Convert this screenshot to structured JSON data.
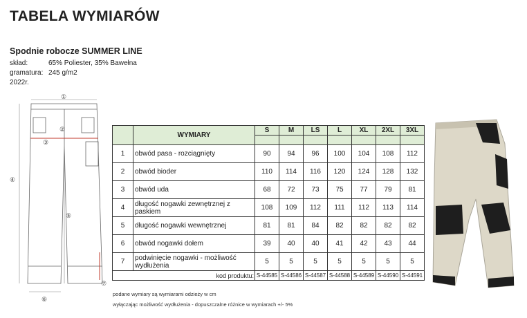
{
  "title": "TABELA WYMIARÓW",
  "product": "Spodnie robocze SUMMER LINE",
  "specs": [
    {
      "label": "skład:",
      "value": "65% Poliester, 35% Bawełna"
    },
    {
      "label": "gramatura:",
      "value": "245 g/m2"
    },
    {
      "label": "2022r.",
      "value": ""
    }
  ],
  "table": {
    "header": "WYMIARY",
    "sizes": [
      "S",
      "M",
      "LS",
      "L",
      "XL",
      "2XL",
      "3XL"
    ],
    "rows": [
      {
        "n": "1",
        "label": "obwód pasa - rozciągnięty",
        "values": [
          "90",
          "94",
          "96",
          "100",
          "104",
          "108",
          "112"
        ]
      },
      {
        "n": "2",
        "label": "obwód bioder",
        "values": [
          "110",
          "114",
          "116",
          "120",
          "124",
          "128",
          "132"
        ]
      },
      {
        "n": "3",
        "label": "obwód uda",
        "values": [
          "68",
          "72",
          "73",
          "75",
          "77",
          "79",
          "81"
        ]
      },
      {
        "n": "4",
        "label": "długość nogawki zewnętrznej z paskiem",
        "values": [
          "108",
          "109",
          "112",
          "111",
          "112",
          "113",
          "114"
        ]
      },
      {
        "n": "5",
        "label": "długość nogawki wewnętrznej",
        "values": [
          "81",
          "81",
          "84",
          "82",
          "82",
          "82",
          "82"
        ]
      },
      {
        "n": "6",
        "label": "obwód nogawki dołem",
        "values": [
          "39",
          "40",
          "40",
          "41",
          "42",
          "43",
          "44"
        ]
      },
      {
        "n": "7",
        "label": "podwinięcie nogawki - możliwość wydłużenia",
        "values": [
          "5",
          "5",
          "5",
          "5",
          "5",
          "5",
          "5"
        ]
      }
    ],
    "code_label": "kod produktu:",
    "codes": [
      "S-44585",
      "S-44586",
      "S-44587",
      "S-44588",
      "S-44589",
      "S-44590",
      "S-44591"
    ]
  },
  "notes": [
    "podane wymiary są wymiarami odzieży w cm",
    "wyłączając możliwość wydłużenia - dopuszczalne różnice w wymiarach +/- 5%"
  ],
  "diagram_markers": [
    "①",
    "②",
    "③",
    "④",
    "⑤",
    "⑥",
    "⑦"
  ],
  "colors": {
    "header_bg": "#dfedd6",
    "pants_beige": "#ddd8c8",
    "pants_black": "#1e1e1e",
    "marker_red": "#c0392b"
  }
}
